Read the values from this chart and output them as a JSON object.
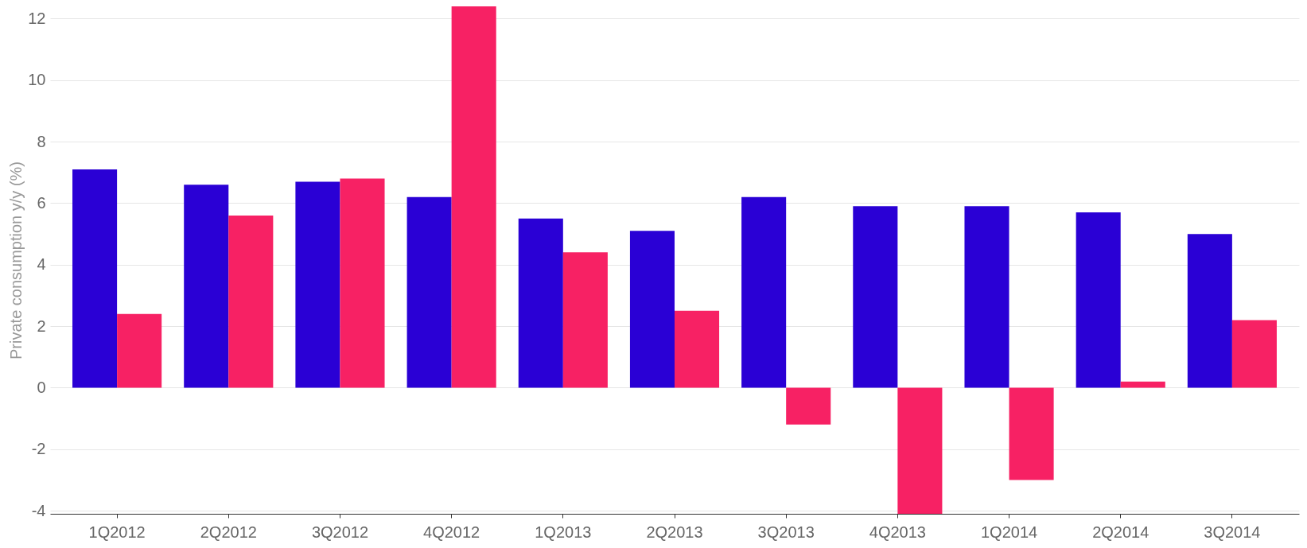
{
  "chart_data": {
    "type": "bar",
    "ylabel": "Private consumption y/y (%)",
    "categories": [
      "1Q2012",
      "2Q2012",
      "3Q2012",
      "4Q2012",
      "1Q2013",
      "2Q2013",
      "3Q2013",
      "4Q2013",
      "1Q2014",
      "2Q2014",
      "3Q2014"
    ],
    "series": [
      {
        "color": "#2a00d5",
        "values": [
          7.1,
          6.6,
          6.7,
          6.2,
          5.5,
          5.1,
          6.2,
          5.9,
          5.9,
          5.7,
          5.0
        ]
      },
      {
        "color": "#f72164",
        "values": [
          2.4,
          5.6,
          6.8,
          12.4,
          4.4,
          2.5,
          -1.2,
          -4.1,
          -3.0,
          0.2,
          2.2
        ]
      }
    ],
    "ylim": [
      -4.1,
      12.4
    ],
    "yticks": [
      -4,
      -2,
      0,
      2,
      4,
      6,
      8,
      10,
      12
    ],
    "grid": "y"
  }
}
